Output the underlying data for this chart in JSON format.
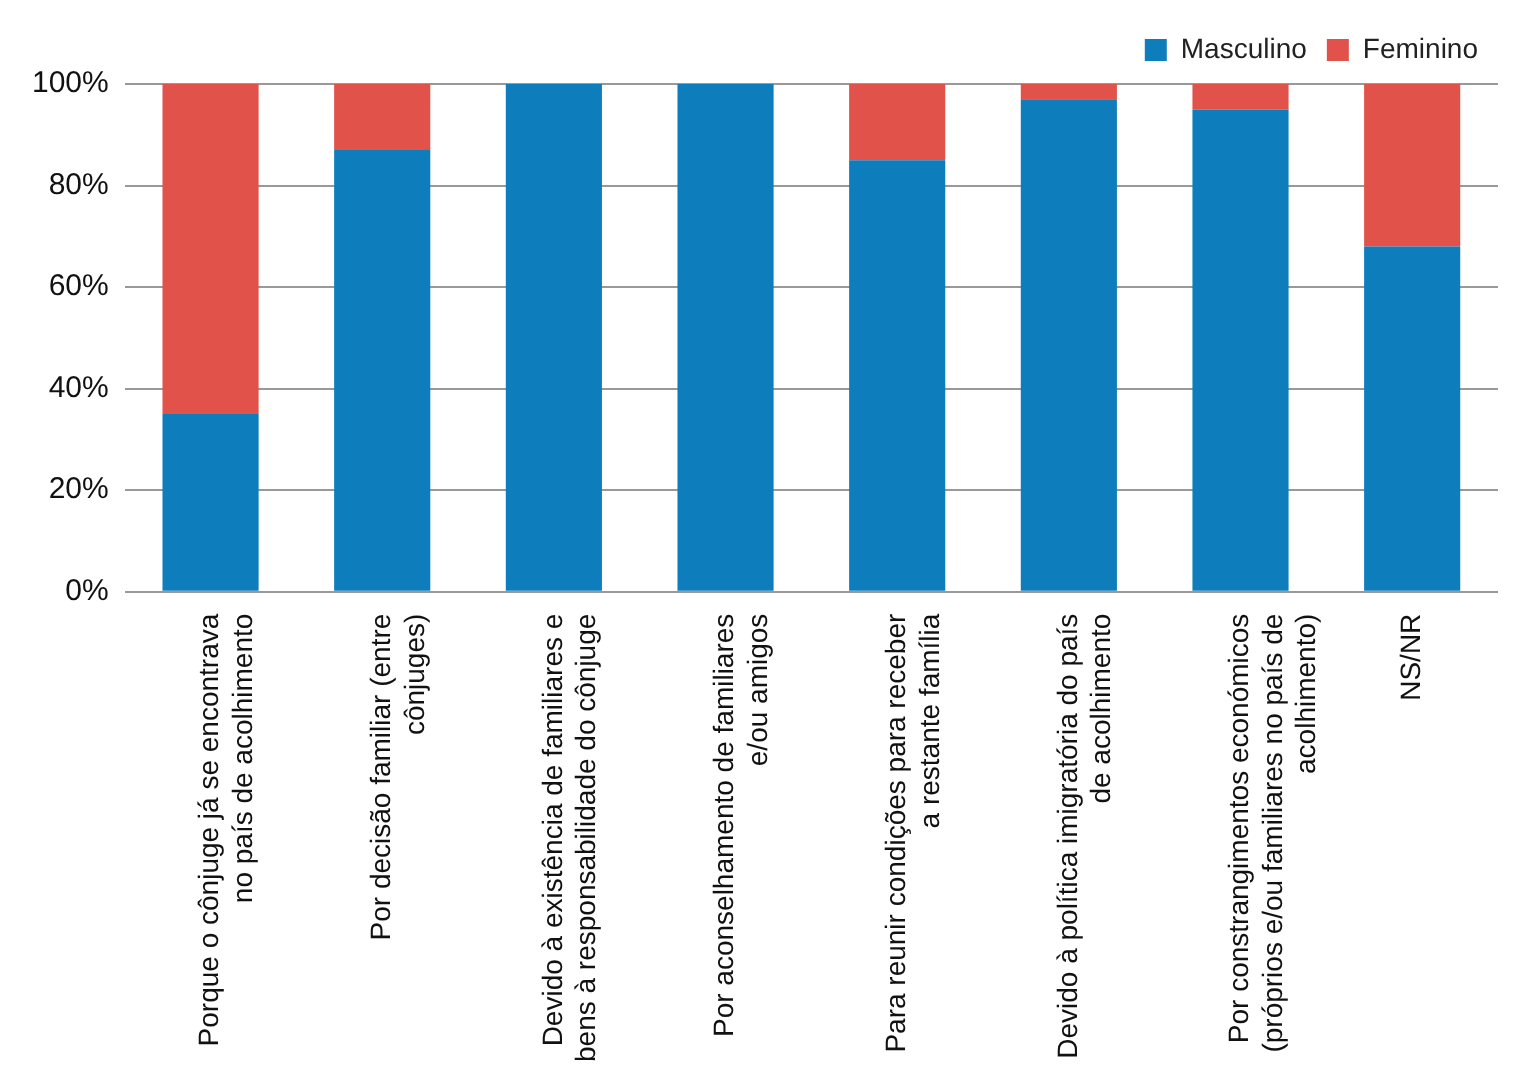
{
  "chart_data": {
    "type": "bar",
    "stacked": true,
    "categories": [
      "Porque o cônjuge já se encontrava\nno país de acolhimento",
      "Por decisão familiar (entre\ncônjuges)",
      "Devido à existência de familiares e\nbens à responsabilidade do cônjuge",
      "Por aconselhamento de familiares\ne/ou amigos",
      "Para reunir condições para receber\na restante família",
      "Devido à política imigratória do país\nde acolhimento",
      "Por constrangimentos económicos\n(próprios e/ou familiares no país de\nacolhimento)",
      "NS/NR"
    ],
    "series": [
      {
        "name": "Masculino",
        "color": "#0e7dbb",
        "values": [
          35,
          87,
          100,
          100,
          85,
          97,
          95,
          68
        ]
      },
      {
        "name": "Feminino",
        "color": "#e0524a",
        "values": [
          65,
          13,
          0,
          0,
          15,
          3,
          5,
          32
        ]
      }
    ],
    "ylim": [
      0,
      100
    ],
    "yticks": [
      {
        "value": 0,
        "label": "0%"
      },
      {
        "value": 20,
        "label": "20%"
      },
      {
        "value": 40,
        "label": "40%"
      },
      {
        "value": 60,
        "label": "60%"
      },
      {
        "value": 80,
        "label": "80%"
      },
      {
        "value": 100,
        "label": "100%"
      }
    ],
    "grid": "y",
    "legend": "top right"
  }
}
